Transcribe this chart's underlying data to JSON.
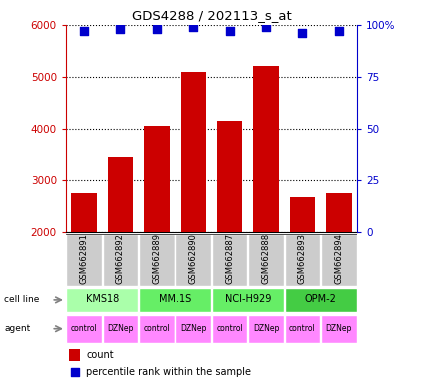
{
  "title": "GDS4288 / 202113_s_at",
  "samples": [
    "GSM662891",
    "GSM662892",
    "GSM662889",
    "GSM662890",
    "GSM662887",
    "GSM662888",
    "GSM662893",
    "GSM662894"
  ],
  "bar_values": [
    2750,
    3450,
    4050,
    5100,
    4150,
    5200,
    2680,
    2750
  ],
  "percentile_values": [
    97,
    98,
    98,
    99,
    97,
    99,
    96,
    97
  ],
  "bar_color": "#cc0000",
  "dot_color": "#0000cc",
  "ylim_left": [
    2000,
    6000
  ],
  "ylim_right": [
    0,
    100
  ],
  "yticks_left": [
    2000,
    3000,
    4000,
    5000,
    6000
  ],
  "yticks_right": [
    0,
    25,
    50,
    75,
    100
  ],
  "cell_lines": [
    {
      "label": "KMS18",
      "start": 0,
      "end": 2,
      "color": "#aaffaa"
    },
    {
      "label": "MM.1S",
      "start": 2,
      "end": 4,
      "color": "#66ee66"
    },
    {
      "label": "NCI-H929",
      "start": 4,
      "end": 6,
      "color": "#66ee66"
    },
    {
      "label": "OPM-2",
      "start": 6,
      "end": 8,
      "color": "#44cc44"
    }
  ],
  "agents": [
    "control",
    "DZNep",
    "control",
    "DZNep",
    "control",
    "DZNep",
    "control",
    "DZNep"
  ],
  "agent_color": "#ff88ff",
  "sample_box_color": "#cccccc",
  "legend_count_color": "#cc0000",
  "legend_dot_color": "#0000cc",
  "bar_width": 0.7,
  "dot_size": 35,
  "right_axis_label_color": "#0000cc",
  "left_axis_label_color": "#cc0000"
}
